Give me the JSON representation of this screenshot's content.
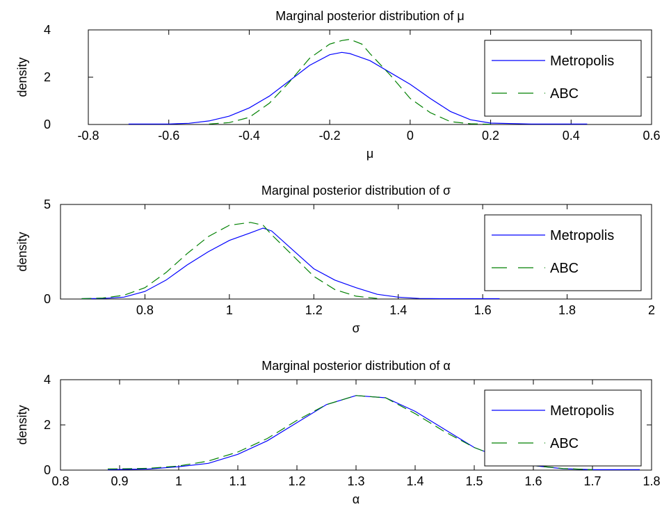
{
  "chart_data": [
    {
      "type": "line",
      "title": "Marginal posterior distribution of μ",
      "xlabel": "μ",
      "ylabel": "density",
      "xlim": [
        -0.8,
        0.6
      ],
      "ylim": [
        0,
        4
      ],
      "xticks": [
        "-0.8",
        "-0.6",
        "-0.4",
        "-0.2",
        "0",
        "0.2",
        "0.4",
        "0.6"
      ],
      "yticks": [
        "0",
        "2",
        "4"
      ],
      "legend_position": "top-right",
      "grid": false,
      "series": [
        {
          "name": "Metropolis",
          "color": "#0000ff",
          "style": "solid",
          "x": [
            -0.7,
            -0.6,
            -0.55,
            -0.5,
            -0.45,
            -0.4,
            -0.35,
            -0.3,
            -0.25,
            -0.2,
            -0.17,
            -0.15,
            -0.1,
            -0.05,
            0.0,
            0.05,
            0.1,
            0.15,
            0.2,
            0.3,
            0.44
          ],
          "y": [
            0.02,
            0.02,
            0.05,
            0.15,
            0.35,
            0.7,
            1.2,
            1.85,
            2.5,
            2.95,
            3.05,
            3.0,
            2.7,
            2.2,
            1.7,
            1.1,
            0.55,
            0.2,
            0.06,
            0.02,
            0.02
          ]
        },
        {
          "name": "ABC",
          "color": "#008000",
          "style": "dashed",
          "x": [
            -0.5,
            -0.45,
            -0.4,
            -0.35,
            -0.3,
            -0.25,
            -0.2,
            -0.17,
            -0.15,
            -0.12,
            -0.1,
            -0.05,
            0.0,
            0.05,
            0.1,
            0.15,
            0.2
          ],
          "y": [
            0.02,
            0.08,
            0.3,
            0.9,
            1.8,
            2.8,
            3.4,
            3.55,
            3.6,
            3.4,
            3.0,
            2.1,
            1.1,
            0.5,
            0.12,
            0.03,
            0.01
          ]
        }
      ]
    },
    {
      "type": "line",
      "title": "Marginal posterior distribution of σ",
      "xlabel": "σ",
      "ylabel": "density",
      "xlim": [
        0.6,
        2.0
      ],
      "ylim": [
        0,
        5
      ],
      "xticks": [
        "0.8",
        "1",
        "1.2",
        "1.4",
        "1.6",
        "1.8",
        "2"
      ],
      "yticks": [
        "0",
        "5"
      ],
      "legend_position": "top-right",
      "grid": false,
      "series": [
        {
          "name": "Metropolis",
          "color": "#0000ff",
          "style": "solid",
          "x": [
            0.65,
            0.7,
            0.75,
            0.8,
            0.85,
            0.9,
            0.95,
            1.0,
            1.05,
            1.08,
            1.1,
            1.15,
            1.2,
            1.25,
            1.3,
            1.35,
            1.4,
            1.45,
            1.5,
            1.64
          ],
          "y": [
            0.02,
            0.03,
            0.1,
            0.4,
            1.0,
            1.8,
            2.5,
            3.1,
            3.5,
            3.75,
            3.6,
            2.6,
            1.6,
            1.0,
            0.6,
            0.25,
            0.1,
            0.03,
            0.02,
            0.02
          ]
        },
        {
          "name": "ABC",
          "color": "#008000",
          "style": "dashed",
          "x": [
            0.65,
            0.7,
            0.75,
            0.8,
            0.85,
            0.9,
            0.95,
            1.0,
            1.05,
            1.08,
            1.1,
            1.15,
            1.2,
            1.25,
            1.3,
            1.35
          ],
          "y": [
            0.02,
            0.05,
            0.2,
            0.6,
            1.4,
            2.4,
            3.3,
            3.9,
            4.05,
            3.9,
            3.4,
            2.3,
            1.2,
            0.5,
            0.15,
            0.03
          ]
        }
      ]
    },
    {
      "type": "line",
      "title": "Marginal posterior distribution of α",
      "xlabel": "α",
      "ylabel": "density",
      "xlim": [
        0.8,
        1.8
      ],
      "ylim": [
        0,
        4
      ],
      "xticks": [
        "0.8",
        "0.9",
        "1",
        "1.1",
        "1.2",
        "1.3",
        "1.4",
        "1.5",
        "1.6",
        "1.7",
        "1.8"
      ],
      "yticks": [
        "0",
        "2",
        "4"
      ],
      "legend_position": "top-right",
      "grid": false,
      "series": [
        {
          "name": "Metropolis",
          "color": "#0000ff",
          "style": "solid",
          "x": [
            0.88,
            0.95,
            1.0,
            1.05,
            1.1,
            1.15,
            1.2,
            1.25,
            1.3,
            1.35,
            1.4,
            1.45,
            1.5,
            1.55,
            1.6,
            1.65,
            1.7,
            1.78
          ],
          "y": [
            0.02,
            0.05,
            0.15,
            0.3,
            0.7,
            1.3,
            2.1,
            2.9,
            3.3,
            3.2,
            2.6,
            1.8,
            1.0,
            0.5,
            0.2,
            0.06,
            0.02,
            0.02
          ]
        },
        {
          "name": "ABC",
          "color": "#008000",
          "style": "dashed",
          "x": [
            0.88,
            0.95,
            1.0,
            1.05,
            1.1,
            1.15,
            1.2,
            1.25,
            1.3,
            1.35,
            1.4,
            1.45,
            1.5,
            1.55,
            1.6,
            1.65,
            1.7
          ],
          "y": [
            0.05,
            0.08,
            0.18,
            0.4,
            0.8,
            1.4,
            2.2,
            2.9,
            3.3,
            3.2,
            2.5,
            1.7,
            1.0,
            0.5,
            0.2,
            0.07,
            0.02
          ]
        }
      ]
    }
  ]
}
